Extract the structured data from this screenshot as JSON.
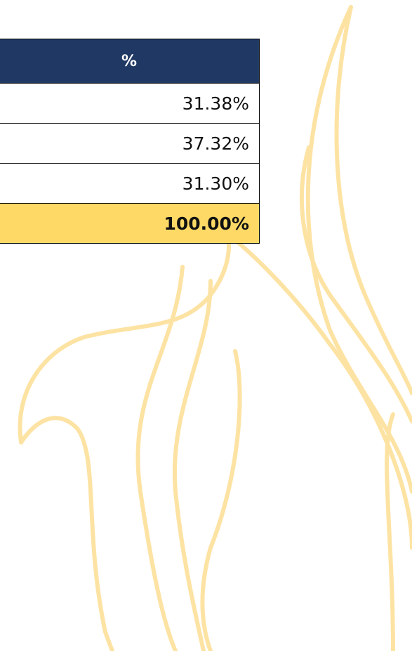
{
  "table": {
    "header": "%",
    "rows": [
      "31.38%",
      "37.32%",
      "31.30%"
    ],
    "total": "100.00%"
  }
}
